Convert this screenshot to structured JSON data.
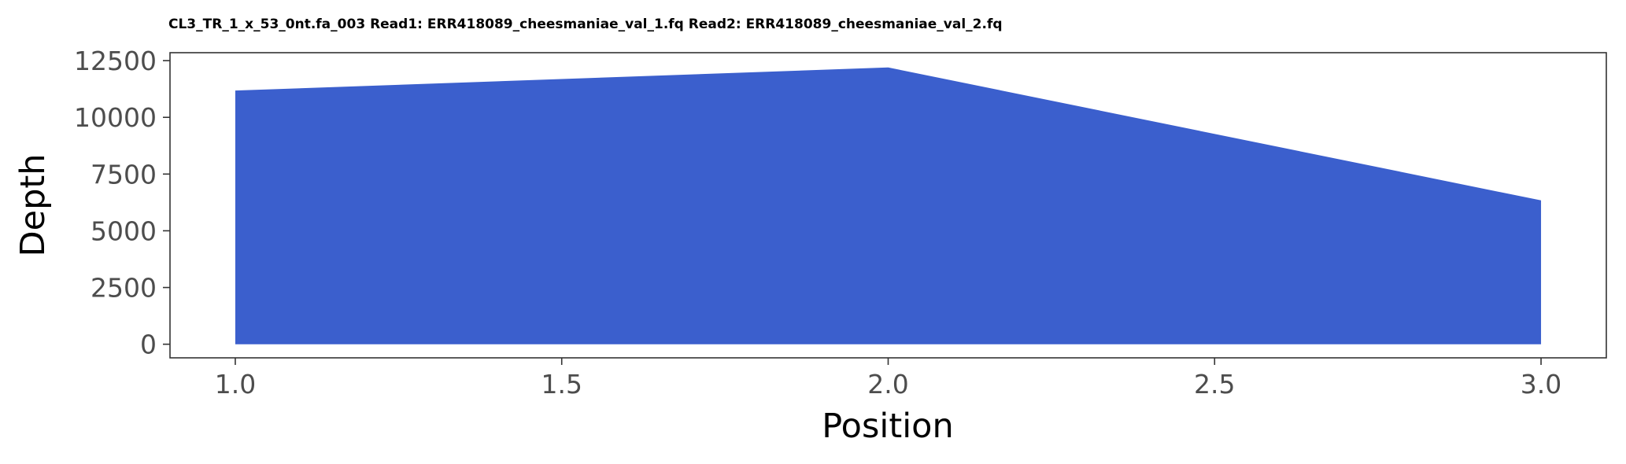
{
  "chart_data": {
    "type": "area",
    "title": "CL3_TR_1_x_53_0nt.fa_003 Read1: ERR418089_cheesmaniae_val_1.fq Read2: ERR418089_cheesmaniae_val_2.fq",
    "xlabel": "Position",
    "ylabel": "Depth",
    "x": [
      1.0,
      2.0,
      3.0
    ],
    "y": [
      11180,
      12200,
      6340
    ],
    "xlim": [
      0.9,
      3.1
    ],
    "ylim": [
      -600,
      12850
    ],
    "x_ticks": [
      1.0,
      1.5,
      2.0,
      2.5,
      3.0
    ],
    "x_tick_labels": [
      "1.0",
      "1.5",
      "2.0",
      "2.5",
      "3.0"
    ],
    "y_ticks": [
      0,
      2500,
      5000,
      7500,
      10000,
      12500
    ],
    "y_tick_labels": [
      "0",
      "2500",
      "5000",
      "7500",
      "10000",
      "12500"
    ],
    "fill_color": "#3b5fcd",
    "grid": false,
    "legend": "none"
  }
}
